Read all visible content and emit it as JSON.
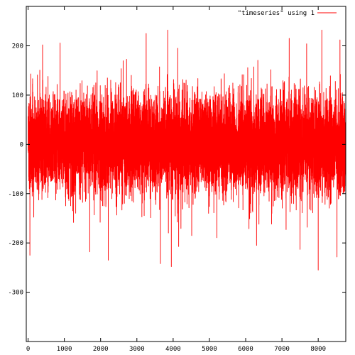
{
  "chart_data": {
    "type": "line",
    "legend": "\"timeseries\" using 1",
    "legend_position": "top-right",
    "series": [
      {
        "name": "\"timeseries\" using 1",
        "color": "#ff0000",
        "n_points": 8760,
        "typical_range": [
          -100,
          100
        ],
        "features": [
          {
            "x": 3950,
            "y": 240
          },
          {
            "x": 3850,
            "y": 232
          },
          {
            "x": 8100,
            "y": 232
          },
          {
            "x": 7200,
            "y": 215
          },
          {
            "x": 8600,
            "y": 212
          },
          {
            "x": 400,
            "y": 202
          },
          {
            "x": 1700,
            "y": 196
          },
          {
            "x": 8000,
            "y": -255
          },
          {
            "x": 3950,
            "y": -248
          },
          {
            "x": 3650,
            "y": -242
          },
          {
            "x": 50,
            "y": -225
          },
          {
            "x": 1700,
            "y": -218
          },
          {
            "x": 7500,
            "y": -213
          },
          {
            "x": 6300,
            "y": -205
          }
        ]
      }
    ],
    "xlim": [
      -50,
      8760
    ],
    "ylim": [
      -400,
      280
    ],
    "xticks": [
      0,
      1000,
      2000,
      3000,
      4000,
      5000,
      6000,
      7000,
      8000
    ],
    "yticks": [
      -300,
      -200,
      -100,
      0,
      100,
      200
    ],
    "grid": false
  }
}
